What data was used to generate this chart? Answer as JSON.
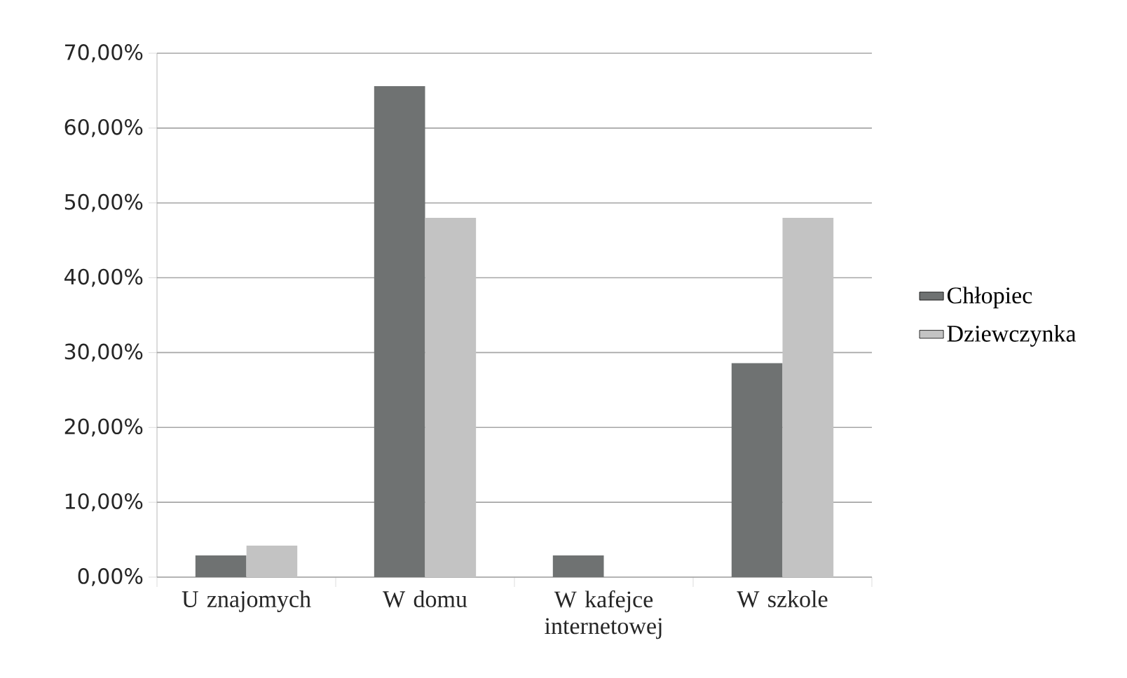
{
  "chart_data": {
    "type": "bar",
    "categories": [
      "U znajomych",
      "W domu",
      "W kafejce internetowej",
      "W szkole"
    ],
    "series": [
      {
        "name": "Chłopiec",
        "color": "#6f7272",
        "values": [
          2.9,
          65.6,
          2.9,
          28.6
        ]
      },
      {
        "name": "Dziewczynka",
        "color": "#c3c3c3",
        "values": [
          4.2,
          48.0,
          0,
          48.0
        ]
      }
    ],
    "ylim": [
      0,
      70
    ],
    "yticks": [
      {
        "value": 0,
        "label": "0,00%"
      },
      {
        "value": 10,
        "label": "10,00%"
      },
      {
        "value": 20,
        "label": "20,00%"
      },
      {
        "value": 30,
        "label": "30,00%"
      },
      {
        "value": 40,
        "label": "40,00%"
      },
      {
        "value": 50,
        "label": "50,00%"
      },
      {
        "value": 60,
        "label": "60,00%"
      },
      {
        "value": 70,
        "label": "70,00%"
      }
    ],
    "grid": "y",
    "legend": "right"
  }
}
